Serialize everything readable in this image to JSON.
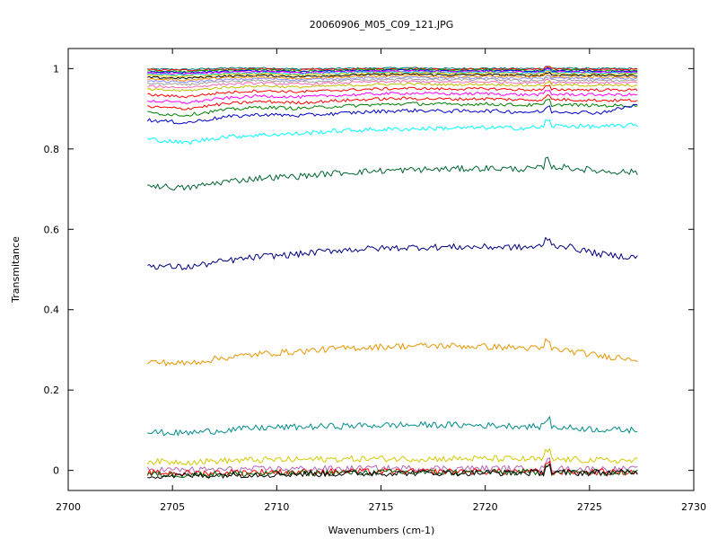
{
  "chart_data": {
    "type": "line",
    "title": "20060906_M05_C09_121.JPG",
    "xlabel": "Wavenumbers (cm-1)",
    "ylabel": "Transmitance",
    "xlim": [
      2700,
      2730
    ],
    "ylim": [
      -0.05,
      1.05
    ],
    "xticks": [
      2700,
      2705,
      2710,
      2715,
      2720,
      2725,
      2730
    ],
    "yticks": [
      0,
      0.2,
      0.4,
      0.6,
      0.8,
      1
    ],
    "grid": false,
    "legend": "none",
    "x_range": [
      2703.8,
      2727.3
    ],
    "series": [
      {
        "color": "#008080",
        "values": [
          0.999,
          0.998,
          1.001,
          1.002,
          0.999,
          1.0,
          1.001,
          1.002,
          1.0,
          1.001,
          1.0,
          1.001,
          1.0,
          1.0
        ]
      },
      {
        "color": "#ff0000",
        "values": [
          0.997,
          0.996,
          0.998,
          0.999,
          0.997,
          0.998,
          0.999,
          1.0,
          0.998,
          0.999,
          0.998,
          0.999,
          0.998,
          0.998
        ]
      },
      {
        "color": "#00a000",
        "values": [
          0.994,
          0.993,
          0.996,
          0.997,
          0.994,
          0.996,
          0.997,
          0.998,
          0.996,
          0.997,
          0.995,
          0.996,
          0.995,
          0.995
        ]
      },
      {
        "color": "#0000ff",
        "values": [
          0.992,
          0.99,
          0.993,
          0.995,
          0.992,
          0.994,
          0.995,
          0.996,
          0.994,
          0.995,
          0.993,
          0.994,
          0.993,
          0.993
        ]
      },
      {
        "color": "#ff00ff",
        "values": [
          0.989,
          0.987,
          0.991,
          0.993,
          0.99,
          0.992,
          0.993,
          0.994,
          0.992,
          0.993,
          0.991,
          0.992,
          0.991,
          0.991
        ]
      },
      {
        "color": "#00c8c8",
        "values": [
          0.986,
          0.984,
          0.988,
          0.99,
          0.987,
          0.989,
          0.991,
          0.992,
          0.99,
          0.991,
          0.989,
          0.99,
          0.989,
          0.989
        ]
      },
      {
        "color": "#e0c000",
        "values": [
          0.982,
          0.98,
          0.985,
          0.987,
          0.984,
          0.986,
          0.988,
          0.989,
          0.987,
          0.988,
          0.986,
          0.987,
          0.986,
          0.986
        ]
      },
      {
        "color": "#000000",
        "values": [
          0.978,
          0.976,
          0.981,
          0.983,
          0.98,
          0.983,
          0.985,
          0.986,
          0.984,
          0.985,
          0.983,
          0.984,
          0.983,
          0.983
        ]
      },
      {
        "color": "#ff8c00",
        "values": [
          0.974,
          0.971,
          0.977,
          0.979,
          0.976,
          0.979,
          0.981,
          0.982,
          0.98,
          0.981,
          0.979,
          0.98,
          0.979,
          0.979
        ]
      },
      {
        "color": "#8c8cff",
        "values": [
          0.969,
          0.966,
          0.972,
          0.975,
          0.972,
          0.975,
          0.977,
          0.978,
          0.976,
          0.977,
          0.975,
          0.976,
          0.975,
          0.975
        ]
      },
      {
        "color": "#a0a0a0",
        "values": [
          0.963,
          0.96,
          0.967,
          0.97,
          0.967,
          0.97,
          0.972,
          0.974,
          0.972,
          0.973,
          0.97,
          0.971,
          0.97,
          0.97
        ]
      },
      {
        "color": "#ff69b4",
        "values": [
          0.956,
          0.953,
          0.961,
          0.964,
          0.961,
          0.964,
          0.967,
          0.968,
          0.966,
          0.967,
          0.965,
          0.966,
          0.965,
          0.965
        ]
      },
      {
        "color": "#c0c000",
        "values": [
          0.948,
          0.945,
          0.953,
          0.957,
          0.954,
          0.957,
          0.96,
          0.962,
          0.96,
          0.961,
          0.958,
          0.959,
          0.958,
          0.958
        ]
      },
      {
        "color": "#ff0000",
        "values": [
          0.935,
          0.93,
          0.94,
          0.945,
          0.942,
          0.946,
          0.949,
          0.951,
          0.949,
          0.95,
          0.947,
          0.948,
          0.947,
          0.947
        ]
      },
      {
        "color": "#ff00ff",
        "values": [
          0.92,
          0.915,
          0.926,
          0.932,
          0.929,
          0.933,
          0.937,
          0.939,
          0.937,
          0.938,
          0.935,
          0.936,
          0.935,
          0.935
        ]
      },
      {
        "color": "#ff0000",
        "values": [
          0.905,
          0.9,
          0.912,
          0.918,
          0.915,
          0.92,
          0.924,
          0.926,
          0.924,
          0.925,
          0.922,
          0.923,
          0.921,
          0.921
        ]
      },
      {
        "color": "#008000",
        "values": [
          0.89,
          0.884,
          0.897,
          0.904,
          0.901,
          0.906,
          0.91,
          0.913,
          0.911,
          0.912,
          0.909,
          0.91,
          0.908,
          0.908
        ]
      },
      {
        "color": "#0000c8",
        "values": [
          0.872,
          0.865,
          0.879,
          0.886,
          0.883,
          0.888,
          0.893,
          0.896,
          0.894,
          0.895,
          0.892,
          0.893,
          0.89,
          0.91
        ]
      },
      {
        "color": "#00ffff",
        "values": [
          0.825,
          0.815,
          0.83,
          0.835,
          0.838,
          0.845,
          0.848,
          0.85,
          0.852,
          0.853,
          0.852,
          0.858,
          0.855,
          0.86
        ]
      },
      {
        "color": "#006432",
        "values": [
          0.71,
          0.702,
          0.718,
          0.728,
          0.732,
          0.74,
          0.745,
          0.748,
          0.75,
          0.752,
          0.75,
          0.755,
          0.745,
          0.742
        ]
      },
      {
        "color": "#00007f",
        "values": [
          0.51,
          0.505,
          0.52,
          0.532,
          0.538,
          0.548,
          0.552,
          0.555,
          0.556,
          0.556,
          0.555,
          0.56,
          0.538,
          0.53
        ]
      },
      {
        "color": "#e69600",
        "values": [
          0.27,
          0.266,
          0.28,
          0.29,
          0.296,
          0.303,
          0.307,
          0.31,
          0.31,
          0.308,
          0.305,
          0.3,
          0.285,
          0.278
        ]
      },
      {
        "color": "#008c8c",
        "values": [
          0.095,
          0.093,
          0.1,
          0.106,
          0.108,
          0.11,
          0.112,
          0.113,
          0.113,
          0.112,
          0.11,
          0.107,
          0.102,
          0.1
        ]
      },
      {
        "color": "#d4c800",
        "values": [
          0.022,
          0.021,
          0.024,
          0.026,
          0.027,
          0.028,
          0.029,
          0.029,
          0.029,
          0.029,
          0.028,
          0.027,
          0.025,
          0.024
        ]
      },
      {
        "color": "#b464b4",
        "values": [
          0.002,
          0.001,
          0.002,
          0.003,
          0.004,
          0.004,
          0.005,
          0.005,
          0.005,
          0.005,
          0.004,
          0.004,
          0.003,
          0.003
        ]
      },
      {
        "color": "#ff0000",
        "values": [
          -0.006,
          -0.007,
          -0.005,
          -0.004,
          -0.004,
          -0.003,
          -0.003,
          -0.003,
          -0.003,
          -0.003,
          -0.003,
          -0.004,
          -0.004,
          -0.004
        ]
      },
      {
        "color": "#006400",
        "values": [
          -0.01,
          -0.011,
          -0.009,
          -0.008,
          -0.007,
          -0.006,
          -0.005,
          -0.005,
          -0.005,
          -0.005,
          -0.005,
          -0.005,
          -0.005,
          -0.005
        ]
      },
      {
        "color": "#000000",
        "values": [
          -0.013,
          -0.013,
          -0.011,
          -0.01,
          -0.009,
          -0.008,
          -0.007,
          -0.006,
          -0.006,
          -0.006,
          -0.006,
          -0.006,
          -0.006,
          -0.005
        ]
      }
    ]
  }
}
